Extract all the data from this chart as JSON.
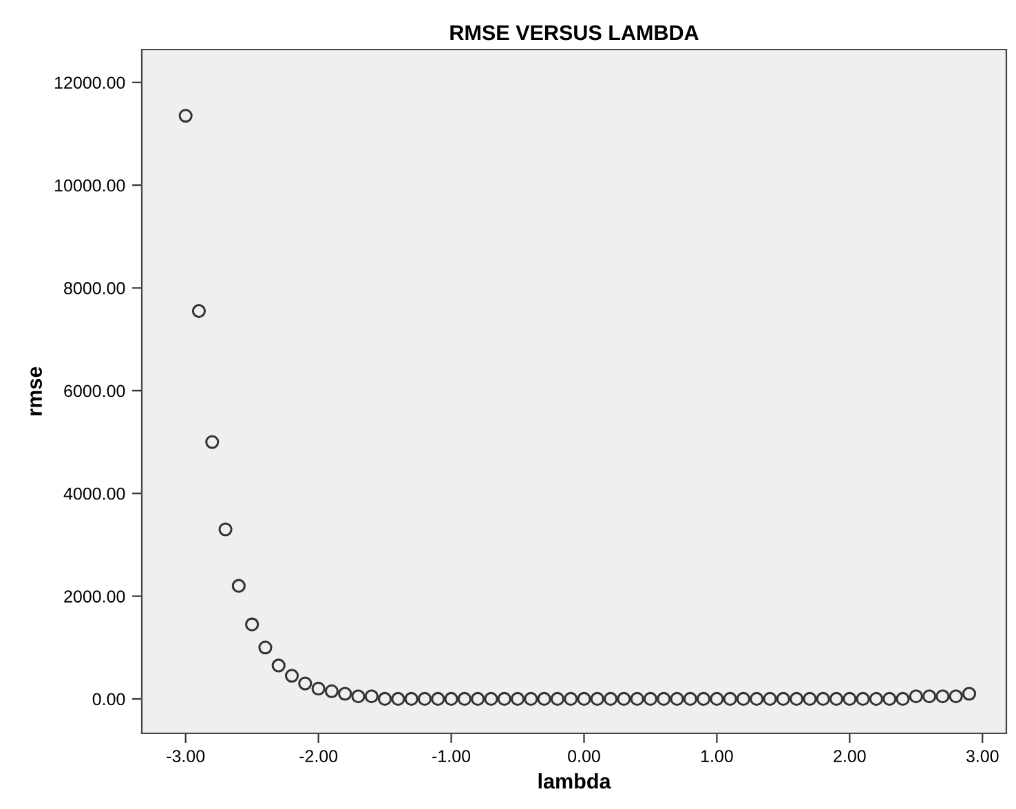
{
  "chart_data": {
    "type": "scatter",
    "title": "RMSE VERSUS LAMBDA",
    "xlabel": "lambda",
    "ylabel": "rmse",
    "x": [
      -3.0,
      -2.9,
      -2.8,
      -2.7,
      -2.6,
      -2.5,
      -2.4,
      -2.3,
      -2.2,
      -2.1,
      -2.0,
      -1.9,
      -1.8,
      -1.7,
      -1.6,
      -1.5,
      -1.4,
      -1.3,
      -1.2,
      -1.1,
      -1.0,
      -0.9,
      -0.8,
      -0.7,
      -0.6,
      -0.5,
      -0.4,
      -0.3,
      -0.2,
      -0.1,
      0.0,
      0.1,
      0.2,
      0.3,
      0.4,
      0.5,
      0.6,
      0.7,
      0.8,
      0.9,
      1.0,
      1.1,
      1.2,
      1.3,
      1.4,
      1.5,
      1.6,
      1.7,
      1.8,
      1.9,
      2.0,
      2.1,
      2.2,
      2.3,
      2.4,
      2.5,
      2.6,
      2.7,
      2.8,
      2.9
    ],
    "series": [
      {
        "color": "#333333",
        "values": [
          11350,
          7550,
          5000,
          3300,
          2200,
          1450,
          1000,
          650,
          450,
          300,
          200,
          150,
          100,
          50,
          50,
          0,
          0,
          0,
          0,
          0,
          0,
          0,
          0,
          0,
          0,
          0,
          0,
          0,
          0,
          0,
          0,
          0,
          0,
          0,
          0,
          0,
          0,
          0,
          0,
          0,
          0,
          0,
          0,
          0,
          0,
          0,
          0,
          0,
          0,
          0,
          0,
          0,
          0,
          0,
          0,
          50,
          50,
          50,
          50,
          100
        ]
      }
    ],
    "xlim": [
      -3.33,
      3.18
    ],
    "ylim": [
      -670,
      12640
    ],
    "xticks": [
      {
        "value": -3,
        "label": "-3.00"
      },
      {
        "value": -2,
        "label": "-2.00"
      },
      {
        "value": -1,
        "label": "-1.00"
      },
      {
        "value": 0,
        "label": "0.00"
      },
      {
        "value": 1,
        "label": "1.00"
      },
      {
        "value": 2,
        "label": "2.00"
      },
      {
        "value": 3,
        "label": "3.00"
      }
    ],
    "yticks": [
      {
        "value": 0,
        "label": "0.00"
      },
      {
        "value": 2000,
        "label": "2000.00"
      },
      {
        "value": 4000,
        "label": "4000.00"
      },
      {
        "value": 6000,
        "label": "6000.00"
      },
      {
        "value": 8000,
        "label": "8000.00"
      },
      {
        "value": 10000,
        "label": "10000.00"
      },
      {
        "value": 12000,
        "label": "12000.00"
      }
    ],
    "marker": "circle",
    "grid": false
  }
}
